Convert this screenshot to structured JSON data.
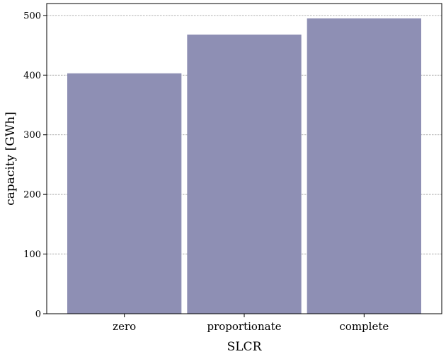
{
  "chart_data": {
    "type": "bar",
    "categories": [
      "zero",
      "proportionate",
      "complete"
    ],
    "values": [
      403,
      468,
      495
    ],
    "xlabel": "SLCR",
    "ylabel": "capacity [GWh]",
    "ylim": [
      0,
      520
    ],
    "yticks": [
      0,
      100,
      200,
      300,
      400,
      500
    ],
    "grid": true,
    "bar_color": "#8e8fb4",
    "grid_color": "#999999"
  }
}
